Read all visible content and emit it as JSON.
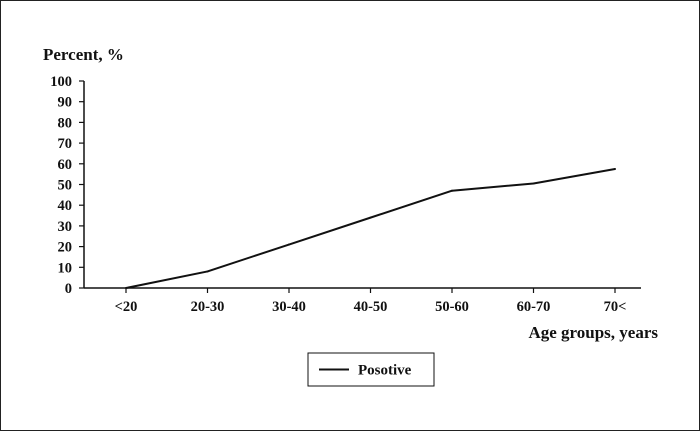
{
  "chart_data": {
    "type": "line",
    "ylabel": "Percent, %",
    "xlabel": "Age groups, years",
    "categories": [
      "<20",
      "20-30",
      "30-40",
      "40-50",
      "50-60",
      "60-70",
      "70<"
    ],
    "series": [
      {
        "name": "Posotive",
        "values": [
          0,
          8,
          21,
          34,
          47,
          50.5,
          57.5
        ]
      }
    ],
    "ylim": [
      0,
      100
    ],
    "yticks": [
      "0",
      "10",
      "20",
      "30",
      "40",
      "50",
      "60",
      "70",
      "80",
      "90",
      "100"
    ],
    "grid": false,
    "legend": "bottom-center",
    "colors": {
      "line": "#111111",
      "axis": "#111111"
    }
  }
}
